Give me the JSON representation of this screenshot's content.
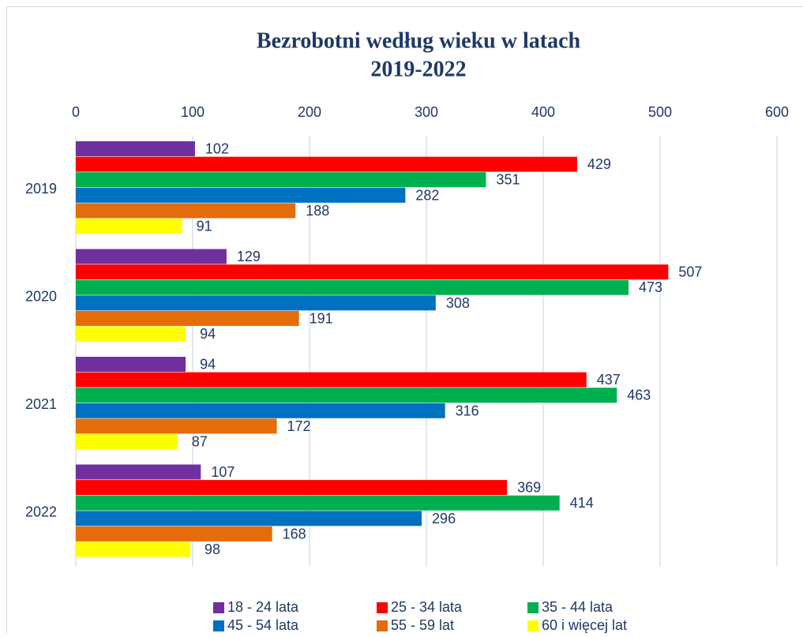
{
  "chart_data": {
    "type": "bar",
    "orientation": "horizontal",
    "title": [
      "Bezrobotni według wieku w latach",
      "2019-2022"
    ],
    "categories": [
      "2019",
      "2020",
      "2021",
      "2022"
    ],
    "series": [
      {
        "name": "18 - 24 lata",
        "color": "#7030a0",
        "values": [
          102,
          129,
          94,
          107
        ]
      },
      {
        "name": "25 - 34 lata",
        "color": "#ff0000",
        "values": [
          429,
          507,
          437,
          369
        ]
      },
      {
        "name": "35 - 44 lata",
        "color": "#00b050",
        "values": [
          351,
          473,
          463,
          414
        ]
      },
      {
        "name": "45 - 54 lata",
        "color": "#0070c0",
        "values": [
          282,
          308,
          316,
          296
        ]
      },
      {
        "name": "55 - 59 lat",
        "color": "#e46c0a",
        "values": [
          188,
          191,
          172,
          168
        ]
      },
      {
        "name": "60 i więcej lat",
        "color": "#ffff00",
        "values": [
          91,
          94,
          87,
          98
        ]
      }
    ],
    "xlim": [
      0,
      600
    ],
    "xticks": [
      0,
      100,
      200,
      300,
      400,
      500,
      600
    ],
    "grid": true,
    "legend": "bottom"
  }
}
